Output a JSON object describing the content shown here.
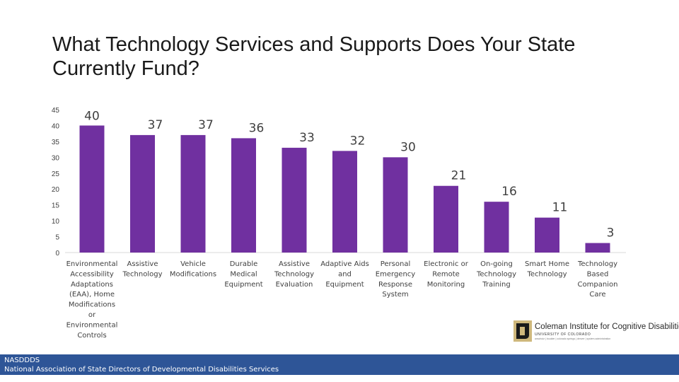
{
  "title": "What Technology Services and Supports Does Your State Currently Fund?",
  "chart_data": {
    "type": "bar",
    "title": "What Technology Services and Supports Does Your State Currently Fund?",
    "categories": [
      "Environmental Accessibility Adaptations (EAA), Home Modifications or Environmental Controls",
      "Assistive Technology",
      "Vehicle Modifications",
      "Durable Medical Equipment",
      "Assistive Technology Evaluation",
      "Adaptive Aids and Equipment",
      "Personal Emergency Response System",
      "Electronic or Remote Monitoring",
      "On-going Technology Training",
      "Smart Home Technology",
      "Technology Based Companion Care"
    ],
    "category_lines": [
      [
        "Environmental",
        "Accessibility",
        "Adaptations",
        "(EAA), Home",
        "Modifications",
        "or",
        "Environmental",
        "Controls"
      ],
      [
        "Assistive",
        "Technology"
      ],
      [
        "Vehicle",
        "Modifications"
      ],
      [
        "Durable",
        "Medical",
        "Equipment"
      ],
      [
        "Assistive",
        "Technology",
        "Evaluation"
      ],
      [
        "Adaptive Aids",
        "and",
        "Equipment"
      ],
      [
        "Personal",
        "Emergency",
        "Response",
        "System"
      ],
      [
        "Electronic or",
        "Remote",
        "Monitoring"
      ],
      [
        "On-going",
        "Technology",
        "Training"
      ],
      [
        "Smart Home",
        "Technology"
      ],
      [
        "Technology",
        "Based",
        "Companion",
        "Care"
      ]
    ],
    "values": [
      40,
      37,
      37,
      36,
      33,
      32,
      30,
      21,
      16,
      11,
      3
    ],
    "ylim": [
      0,
      45
    ],
    "yticks": [
      0,
      5,
      10,
      15,
      20,
      25,
      30,
      35,
      40,
      45
    ],
    "xlabel": "",
    "ylabel": "",
    "bar_color": "#7030a0",
    "grid": false,
    "legend": "none"
  },
  "logo": {
    "name": "Coleman Institute for Cognitive Disabilities",
    "subtitle": "UNIVERSITY OF COLORADO",
    "fine_print": "anschutz | boulder | colorado springs | denver | system administration"
  },
  "footer": {
    "line1": "NASDDDS",
    "line2": "National Association of State Directors of Developmental Disabilities Services",
    "color": "#2e5597"
  }
}
